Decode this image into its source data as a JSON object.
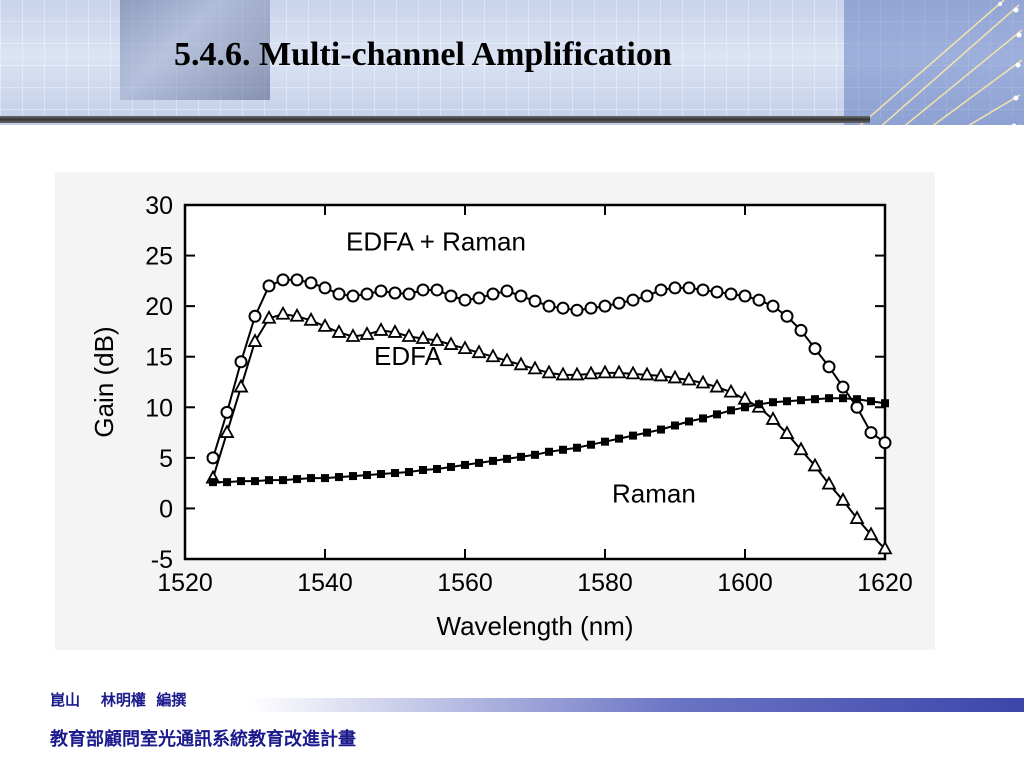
{
  "slide": {
    "title": "5.4.6. Multi-channel Amplification",
    "footer_author": "崑山    林明權  編撰",
    "footer_project": "教育部顧問室光通訊系統教育改進計畫",
    "accent_color": "#1a1a8c"
  },
  "chart_data": {
    "type": "line",
    "xlabel": "Wavelength (nm)",
    "ylabel": "Gain (dB)",
    "xlim": [
      1520,
      1620
    ],
    "ylim": [
      -5,
      30
    ],
    "x_ticks": [
      1520,
      1540,
      1560,
      1580,
      1600,
      1620
    ],
    "y_ticks": [
      -5,
      0,
      5,
      10,
      15,
      20,
      25,
      30
    ],
    "grid": false,
    "series": [
      {
        "name": "EDFA + Raman",
        "marker": "circle",
        "x": [
          1524,
          1526,
          1528,
          1530,
          1532,
          1534,
          1536,
          1538,
          1540,
          1542,
          1544,
          1546,
          1548,
          1550,
          1552,
          1554,
          1556,
          1558,
          1560,
          1562,
          1564,
          1566,
          1568,
          1570,
          1572,
          1574,
          1576,
          1578,
          1580,
          1582,
          1584,
          1586,
          1588,
          1590,
          1592,
          1594,
          1596,
          1598,
          1600,
          1602,
          1604,
          1606,
          1608,
          1610,
          1612,
          1614,
          1616,
          1618,
          1620
        ],
        "y": [
          5.0,
          9.5,
          14.5,
          19.0,
          22.0,
          22.6,
          22.6,
          22.3,
          21.8,
          21.2,
          21.0,
          21.2,
          21.5,
          21.3,
          21.2,
          21.6,
          21.6,
          21.0,
          20.6,
          20.8,
          21.2,
          21.5,
          21.0,
          20.5,
          20.0,
          19.8,
          19.6,
          19.8,
          20.0,
          20.3,
          20.6,
          21.0,
          21.6,
          21.8,
          21.8,
          21.6,
          21.4,
          21.2,
          21.0,
          20.6,
          20.0,
          19.0,
          17.6,
          15.8,
          14.0,
          12.0,
          10.0,
          7.5,
          6.5
        ]
      },
      {
        "name": "EDFA",
        "marker": "triangle",
        "x": [
          1524,
          1526,
          1528,
          1530,
          1532,
          1534,
          1536,
          1538,
          1540,
          1542,
          1544,
          1546,
          1548,
          1550,
          1552,
          1554,
          1556,
          1558,
          1560,
          1562,
          1564,
          1566,
          1568,
          1570,
          1572,
          1574,
          1576,
          1578,
          1580,
          1582,
          1584,
          1586,
          1588,
          1590,
          1592,
          1594,
          1596,
          1598,
          1600,
          1602,
          1604,
          1606,
          1608,
          1610,
          1612,
          1614,
          1616,
          1618,
          1620
        ],
        "y": [
          3.0,
          7.5,
          12.0,
          16.5,
          18.8,
          19.2,
          19.0,
          18.6,
          18.0,
          17.4,
          17.0,
          17.2,
          17.6,
          17.4,
          17.0,
          16.8,
          16.6,
          16.2,
          15.8,
          15.4,
          15.0,
          14.6,
          14.2,
          13.8,
          13.4,
          13.2,
          13.2,
          13.3,
          13.4,
          13.4,
          13.3,
          13.2,
          13.1,
          12.9,
          12.7,
          12.4,
          12.0,
          11.5,
          10.8,
          10.0,
          8.8,
          7.4,
          5.8,
          4.2,
          2.4,
          0.8,
          -1.0,
          -2.6,
          -4.0
        ]
      },
      {
        "name": "Raman",
        "marker": "square",
        "x": [
          1524,
          1526,
          1528,
          1530,
          1532,
          1534,
          1536,
          1538,
          1540,
          1542,
          1544,
          1546,
          1548,
          1550,
          1552,
          1554,
          1556,
          1558,
          1560,
          1562,
          1564,
          1566,
          1568,
          1570,
          1572,
          1574,
          1576,
          1578,
          1580,
          1582,
          1584,
          1586,
          1588,
          1590,
          1592,
          1594,
          1596,
          1598,
          1600,
          1602,
          1604,
          1606,
          1608,
          1610,
          1612,
          1614,
          1616,
          1618,
          1620
        ],
        "y": [
          2.6,
          2.6,
          2.7,
          2.7,
          2.8,
          2.8,
          2.9,
          3.0,
          3.0,
          3.1,
          3.2,
          3.3,
          3.4,
          3.5,
          3.6,
          3.8,
          3.9,
          4.1,
          4.3,
          4.5,
          4.7,
          4.9,
          5.1,
          5.3,
          5.6,
          5.8,
          6.0,
          6.3,
          6.6,
          6.9,
          7.2,
          7.5,
          7.8,
          8.2,
          8.6,
          8.9,
          9.3,
          9.7,
          10.0,
          10.3,
          10.5,
          10.6,
          10.7,
          10.8,
          10.9,
          10.9,
          10.8,
          10.6,
          10.4
        ]
      }
    ],
    "annotations": [
      {
        "text": "EDFA + Raman",
        "x": 1543,
        "y": 25.5
      },
      {
        "text": "EDFA",
        "x": 1547,
        "y": 14.2
      },
      {
        "text": "Raman",
        "x": 1581,
        "y": 0.6
      }
    ]
  }
}
